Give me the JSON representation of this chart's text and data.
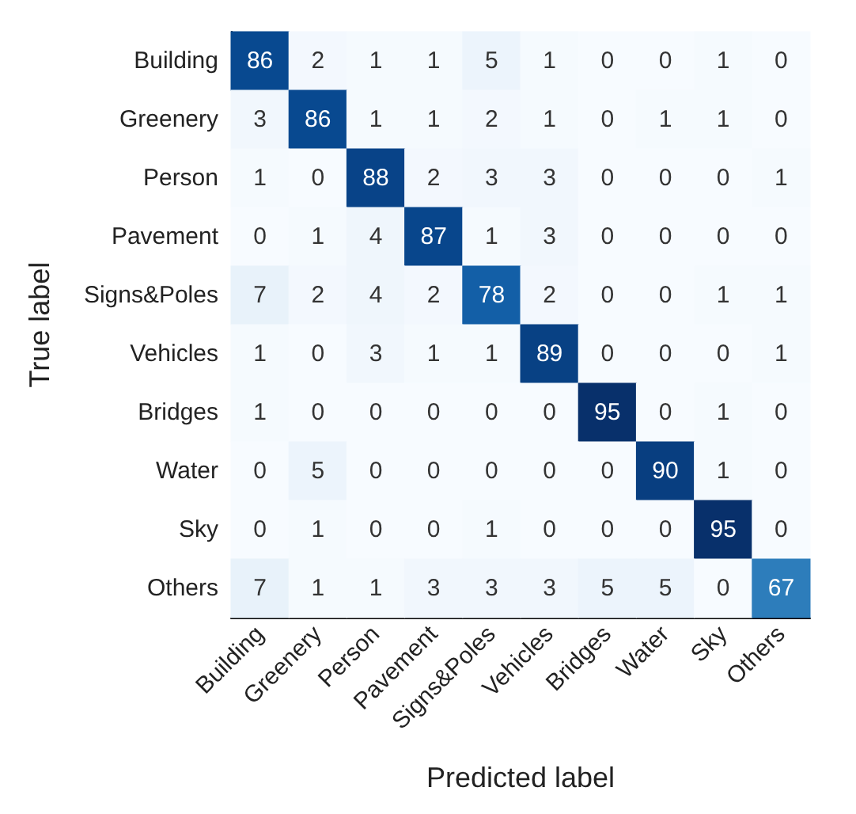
{
  "chart_data": {
    "type": "heatmap",
    "xlabel": "Predicted label",
    "ylabel": "True label",
    "categories": [
      "Building",
      "Greenery",
      "Person",
      "Pavement",
      "Signs&Poles",
      "Vehicles",
      "Bridges",
      "Water",
      "Sky",
      "Others"
    ],
    "y_categories": [
      "Building",
      "Greenery",
      "Person",
      "Pavement",
      "Signs&Poles",
      "Vehicles",
      "Bridges",
      "Water",
      "Sky",
      "Others"
    ],
    "cells": [
      [
        86,
        2,
        1,
        1,
        5,
        1,
        0,
        0,
        1,
        0
      ],
      [
        3,
        86,
        1,
        1,
        2,
        1,
        0,
        1,
        1,
        0
      ],
      [
        1,
        0,
        88,
        2,
        3,
        3,
        0,
        0,
        0,
        1
      ],
      [
        0,
        1,
        4,
        87,
        1,
        3,
        0,
        0,
        0,
        0
      ],
      [
        7,
        2,
        4,
        2,
        78,
        2,
        0,
        0,
        1,
        1
      ],
      [
        1,
        0,
        3,
        1,
        1,
        89,
        0,
        0,
        0,
        1
      ],
      [
        1,
        0,
        0,
        0,
        0,
        0,
        95,
        0,
        1,
        0
      ],
      [
        0,
        5,
        0,
        0,
        0,
        0,
        0,
        90,
        1,
        0
      ],
      [
        0,
        1,
        0,
        0,
        1,
        0,
        0,
        0,
        95,
        0
      ],
      [
        7,
        1,
        1,
        3,
        3,
        3,
        5,
        5,
        0,
        67
      ]
    ],
    "data_labels": true
  }
}
